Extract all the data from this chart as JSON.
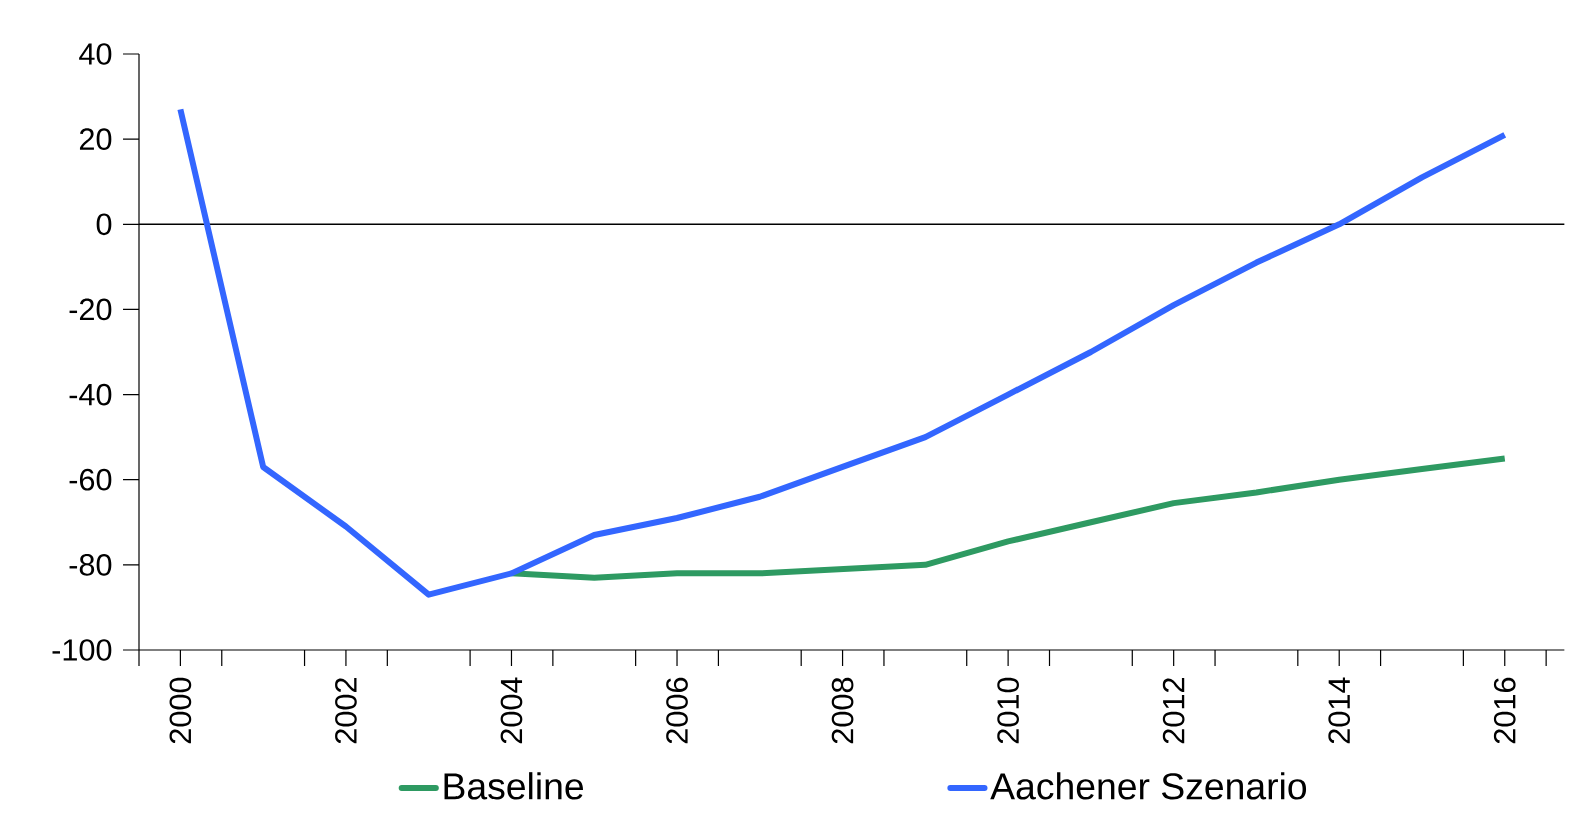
{
  "chart_data": {
    "type": "line",
    "x": [
      2000,
      2001,
      2002,
      2003,
      2004,
      2005,
      2006,
      2007,
      2008,
      2009,
      2010,
      2011,
      2012,
      2013,
      2014,
      2015,
      2016
    ],
    "series": [
      {
        "name": "Baseline",
        "color": "#2e9a62",
        "values": [
          null,
          null,
          null,
          null,
          -82,
          -83,
          -82,
          -82,
          -81,
          -80,
          -74.5,
          -70,
          -65.5,
          -63,
          -60,
          -57.5,
          -55
        ]
      },
      {
        "name": "Aachener Szenario",
        "color": "#3366ff",
        "values": [
          27,
          -57,
          -71,
          -87,
          -82,
          -73,
          -69,
          -64,
          -57,
          -50,
          -40,
          -30,
          -19,
          -9,
          0,
          11,
          21
        ]
      }
    ],
    "xlim": [
      1999.5,
      2016.72
    ],
    "xticks": [
      {
        "value": 1999.5,
        "label": null
      },
      {
        "value": 2000,
        "label": "2000"
      },
      {
        "value": 2000.5,
        "label": null
      },
      {
        "value": 2001.5,
        "label": null
      },
      {
        "value": 2002,
        "label": "2002"
      },
      {
        "value": 2002.5,
        "label": null
      },
      {
        "value": 2003.5,
        "label": null
      },
      {
        "value": 2004,
        "label": "2004"
      },
      {
        "value": 2004.5,
        "label": null
      },
      {
        "value": 2005.5,
        "label": null
      },
      {
        "value": 2006,
        "label": "2006"
      },
      {
        "value": 2006.5,
        "label": null
      },
      {
        "value": 2007.5,
        "label": null
      },
      {
        "value": 2008,
        "label": "2008"
      },
      {
        "value": 2008.5,
        "label": null
      },
      {
        "value": 2009.5,
        "label": null
      },
      {
        "value": 2010,
        "label": "2010"
      },
      {
        "value": 2010.5,
        "label": null
      },
      {
        "value": 2011.5,
        "label": null
      },
      {
        "value": 2012,
        "label": "2012"
      },
      {
        "value": 2012.5,
        "label": null
      },
      {
        "value": 2013.5,
        "label": null
      },
      {
        "value": 2014,
        "label": "2014"
      },
      {
        "value": 2014.5,
        "label": null
      },
      {
        "value": 2015.5,
        "label": null
      },
      {
        "value": 2016,
        "label": "2016"
      },
      {
        "value": 2016.5,
        "label": null
      }
    ],
    "ylim": [
      -100,
      40
    ],
    "yticks": [
      -100,
      -80,
      -60,
      -40,
      -20,
      0,
      20,
      40
    ],
    "ref_lines": [
      {
        "axis": "y",
        "value": 0,
        "color": "#000000"
      }
    ],
    "grid": false,
    "legend": "bottom",
    "marker": "none",
    "line_style": "solid"
  }
}
